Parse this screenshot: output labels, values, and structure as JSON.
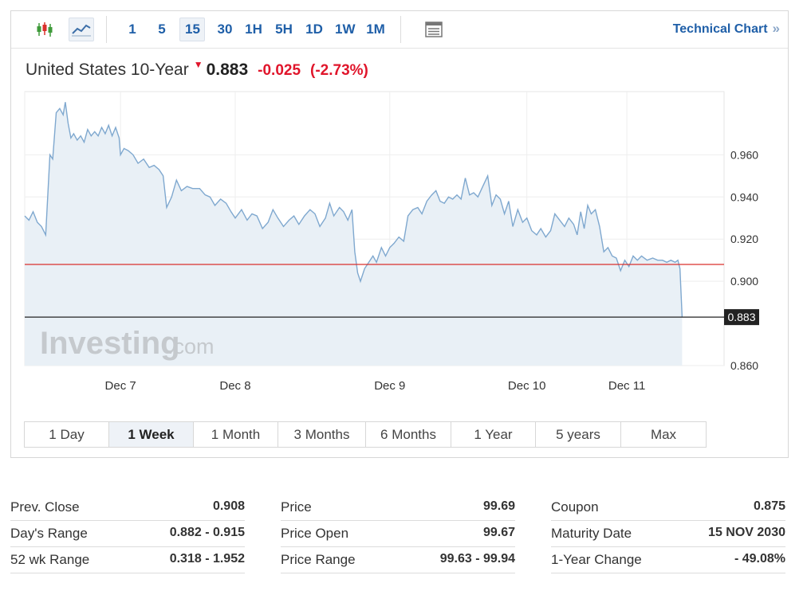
{
  "toolbar": {
    "icons": [
      "candlestick-icon",
      "line-chart-icon",
      "panel-icon"
    ],
    "intervals": [
      "1",
      "5",
      "15",
      "30",
      "1H",
      "5H",
      "1D",
      "1W",
      "1M"
    ],
    "active_interval": "15",
    "technical_link": "Technical Chart",
    "technical_chevron": "»"
  },
  "headline": {
    "name": "United States 10-Year",
    "price": "0.883",
    "change": "-0.025",
    "change_pct": "(-2.73%)",
    "down_color": "#e0152b"
  },
  "watermark": {
    "brand": "Investing",
    "suffix": ".com"
  },
  "chart_data": {
    "type": "area",
    "ylim": [
      0.86,
      0.99
    ],
    "y_ticks": [
      0.86,
      0.9,
      0.92,
      0.94,
      0.96
    ],
    "x_tick_labels": [
      {
        "label": "Dec 7",
        "t": 0.137
      },
      {
        "label": "Dec 8",
        "t": 0.301
      },
      {
        "label": "Dec 9",
        "t": 0.522
      },
      {
        "label": "Dec 10",
        "t": 0.718
      },
      {
        "label": "Dec 11",
        "t": 0.861
      }
    ],
    "reference_lines": [
      {
        "name": "prev-close",
        "value": 0.908,
        "color": "#d9302c"
      },
      {
        "name": "current",
        "value": 0.883,
        "color": "#222222",
        "label": "0.883"
      }
    ],
    "line_color": "#7fa8cf",
    "fill_color": "#e9f0f6",
    "series": [
      {
        "points": [
          [
            0.0,
            0.931
          ],
          [
            0.006,
            0.929
          ],
          [
            0.012,
            0.933
          ],
          [
            0.018,
            0.928
          ],
          [
            0.024,
            0.926
          ],
          [
            0.03,
            0.922
          ],
          [
            0.036,
            0.96
          ],
          [
            0.04,
            0.958
          ],
          [
            0.045,
            0.98
          ],
          [
            0.05,
            0.982
          ],
          [
            0.055,
            0.979
          ],
          [
            0.058,
            0.985
          ],
          [
            0.062,
            0.975
          ],
          [
            0.066,
            0.968
          ],
          [
            0.07,
            0.97
          ],
          [
            0.075,
            0.967
          ],
          [
            0.08,
            0.969
          ],
          [
            0.085,
            0.966
          ],
          [
            0.09,
            0.972
          ],
          [
            0.095,
            0.969
          ],
          [
            0.1,
            0.971
          ],
          [
            0.105,
            0.969
          ],
          [
            0.11,
            0.973
          ],
          [
            0.115,
            0.97
          ],
          [
            0.12,
            0.974
          ],
          [
            0.125,
            0.969
          ],
          [
            0.13,
            0.973
          ],
          [
            0.135,
            0.968
          ],
          [
            0.137,
            0.96
          ],
          [
            0.142,
            0.963
          ],
          [
            0.148,
            0.962
          ],
          [
            0.155,
            0.96
          ],
          [
            0.162,
            0.956
          ],
          [
            0.17,
            0.958
          ],
          [
            0.178,
            0.954
          ],
          [
            0.185,
            0.955
          ],
          [
            0.192,
            0.953
          ],
          [
            0.198,
            0.95
          ],
          [
            0.203,
            0.935
          ],
          [
            0.21,
            0.94
          ],
          [
            0.217,
            0.948
          ],
          [
            0.224,
            0.943
          ],
          [
            0.232,
            0.945
          ],
          [
            0.24,
            0.944
          ],
          [
            0.25,
            0.944
          ],
          [
            0.258,
            0.941
          ],
          [
            0.265,
            0.94
          ],
          [
            0.272,
            0.936
          ],
          [
            0.28,
            0.939
          ],
          [
            0.288,
            0.937
          ],
          [
            0.295,
            0.933
          ],
          [
            0.301,
            0.93
          ],
          [
            0.31,
            0.934
          ],
          [
            0.318,
            0.929
          ],
          [
            0.325,
            0.932
          ],
          [
            0.332,
            0.931
          ],
          [
            0.34,
            0.925
          ],
          [
            0.348,
            0.928
          ],
          [
            0.355,
            0.934
          ],
          [
            0.362,
            0.93
          ],
          [
            0.37,
            0.926
          ],
          [
            0.378,
            0.929
          ],
          [
            0.385,
            0.931
          ],
          [
            0.392,
            0.927
          ],
          [
            0.4,
            0.931
          ],
          [
            0.408,
            0.934
          ],
          [
            0.415,
            0.932
          ],
          [
            0.422,
            0.926
          ],
          [
            0.43,
            0.93
          ],
          [
            0.436,
            0.937
          ],
          [
            0.442,
            0.931
          ],
          [
            0.45,
            0.935
          ],
          [
            0.456,
            0.933
          ],
          [
            0.462,
            0.929
          ],
          [
            0.468,
            0.934
          ],
          [
            0.472,
            0.914
          ],
          [
            0.476,
            0.904
          ],
          [
            0.48,
            0.9
          ],
          [
            0.486,
            0.906
          ],
          [
            0.492,
            0.909
          ],
          [
            0.498,
            0.912
          ],
          [
            0.503,
            0.909
          ],
          [
            0.51,
            0.916
          ],
          [
            0.516,
            0.912
          ],
          [
            0.522,
            0.916
          ],
          [
            0.528,
            0.918
          ],
          [
            0.535,
            0.921
          ],
          [
            0.542,
            0.919
          ],
          [
            0.548,
            0.931
          ],
          [
            0.555,
            0.934
          ],
          [
            0.562,
            0.935
          ],
          [
            0.568,
            0.932
          ],
          [
            0.575,
            0.938
          ],
          [
            0.582,
            0.941
          ],
          [
            0.588,
            0.943
          ],
          [
            0.594,
            0.938
          ],
          [
            0.6,
            0.937
          ],
          [
            0.606,
            0.94
          ],
          [
            0.612,
            0.939
          ],
          [
            0.618,
            0.941
          ],
          [
            0.624,
            0.939
          ],
          [
            0.63,
            0.949
          ],
          [
            0.636,
            0.941
          ],
          [
            0.642,
            0.942
          ],
          [
            0.648,
            0.94
          ],
          [
            0.655,
            0.945
          ],
          [
            0.662,
            0.95
          ],
          [
            0.668,
            0.936
          ],
          [
            0.674,
            0.941
          ],
          [
            0.68,
            0.939
          ],
          [
            0.686,
            0.932
          ],
          [
            0.692,
            0.938
          ],
          [
            0.698,
            0.926
          ],
          [
            0.705,
            0.934
          ],
          [
            0.712,
            0.928
          ],
          [
            0.718,
            0.93
          ],
          [
            0.725,
            0.924
          ],
          [
            0.732,
            0.922
          ],
          [
            0.738,
            0.925
          ],
          [
            0.745,
            0.921
          ],
          [
            0.752,
            0.924
          ],
          [
            0.758,
            0.932
          ],
          [
            0.765,
            0.929
          ],
          [
            0.772,
            0.926
          ],
          [
            0.778,
            0.93
          ],
          [
            0.785,
            0.927
          ],
          [
            0.79,
            0.922
          ],
          [
            0.795,
            0.933
          ],
          [
            0.8,
            0.925
          ],
          [
            0.805,
            0.936
          ],
          [
            0.81,
            0.932
          ],
          [
            0.816,
            0.934
          ],
          [
            0.822,
            0.926
          ],
          [
            0.828,
            0.914
          ],
          [
            0.834,
            0.916
          ],
          [
            0.84,
            0.912
          ],
          [
            0.846,
            0.911
          ],
          [
            0.852,
            0.905
          ],
          [
            0.858,
            0.91
          ],
          [
            0.864,
            0.907
          ],
          [
            0.87,
            0.912
          ],
          [
            0.876,
            0.91
          ],
          [
            0.882,
            0.912
          ],
          [
            0.89,
            0.91
          ],
          [
            0.898,
            0.911
          ],
          [
            0.905,
            0.91
          ],
          [
            0.912,
            0.91
          ],
          [
            0.918,
            0.909
          ],
          [
            0.924,
            0.91
          ],
          [
            0.93,
            0.909
          ],
          [
            0.934,
            0.91
          ],
          [
            0.937,
            0.906
          ],
          [
            0.94,
            0.883
          ]
        ]
      }
    ]
  },
  "periods": {
    "items": [
      "1 Day",
      "1 Week",
      "1 Month",
      "3 Months",
      "6 Months",
      "1 Year",
      "5 years",
      "Max"
    ],
    "active": "1 Week"
  },
  "stats": {
    "col1": [
      {
        "label": "Prev. Close",
        "value": "0.908"
      },
      {
        "label": "Day's Range",
        "value": "0.882 - 0.915"
      },
      {
        "label": "52 wk Range",
        "value": "0.318 - 1.952"
      }
    ],
    "col2": [
      {
        "label": "Price",
        "value": "99.69"
      },
      {
        "label": "Price Open",
        "value": "99.67"
      },
      {
        "label": "Price Range",
        "value": "99.63 - 99.94"
      }
    ],
    "col3": [
      {
        "label": "Coupon",
        "value": "0.875"
      },
      {
        "label": "Maturity Date",
        "value": "15 NOV 2030"
      },
      {
        "label": "1-Year Change",
        "value": "- 49.08%"
      }
    ]
  }
}
